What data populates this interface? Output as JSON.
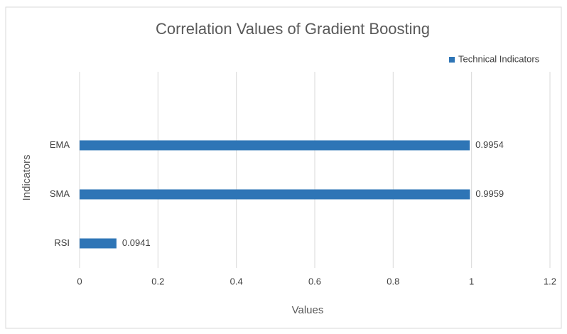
{
  "chart_data": {
    "type": "hbar",
    "title": "Correlation Values of Gradient Boosting",
    "x_label": "Values",
    "y_label": "Indicators",
    "categories": [
      "RSI",
      "SMA",
      "EMA",
      null
    ],
    "series": [
      {
        "name": "Technical Indicators",
        "color": "#2e75b6",
        "values": [
          0.0941,
          0.9959,
          0.9954,
          null
        ]
      }
    ],
    "xlim": [
      0,
      1.2
    ],
    "xticks": [
      0,
      0.2,
      0.4,
      0.6,
      0.8,
      1,
      1.2
    ],
    "grid": true,
    "legend": "top-right"
  }
}
